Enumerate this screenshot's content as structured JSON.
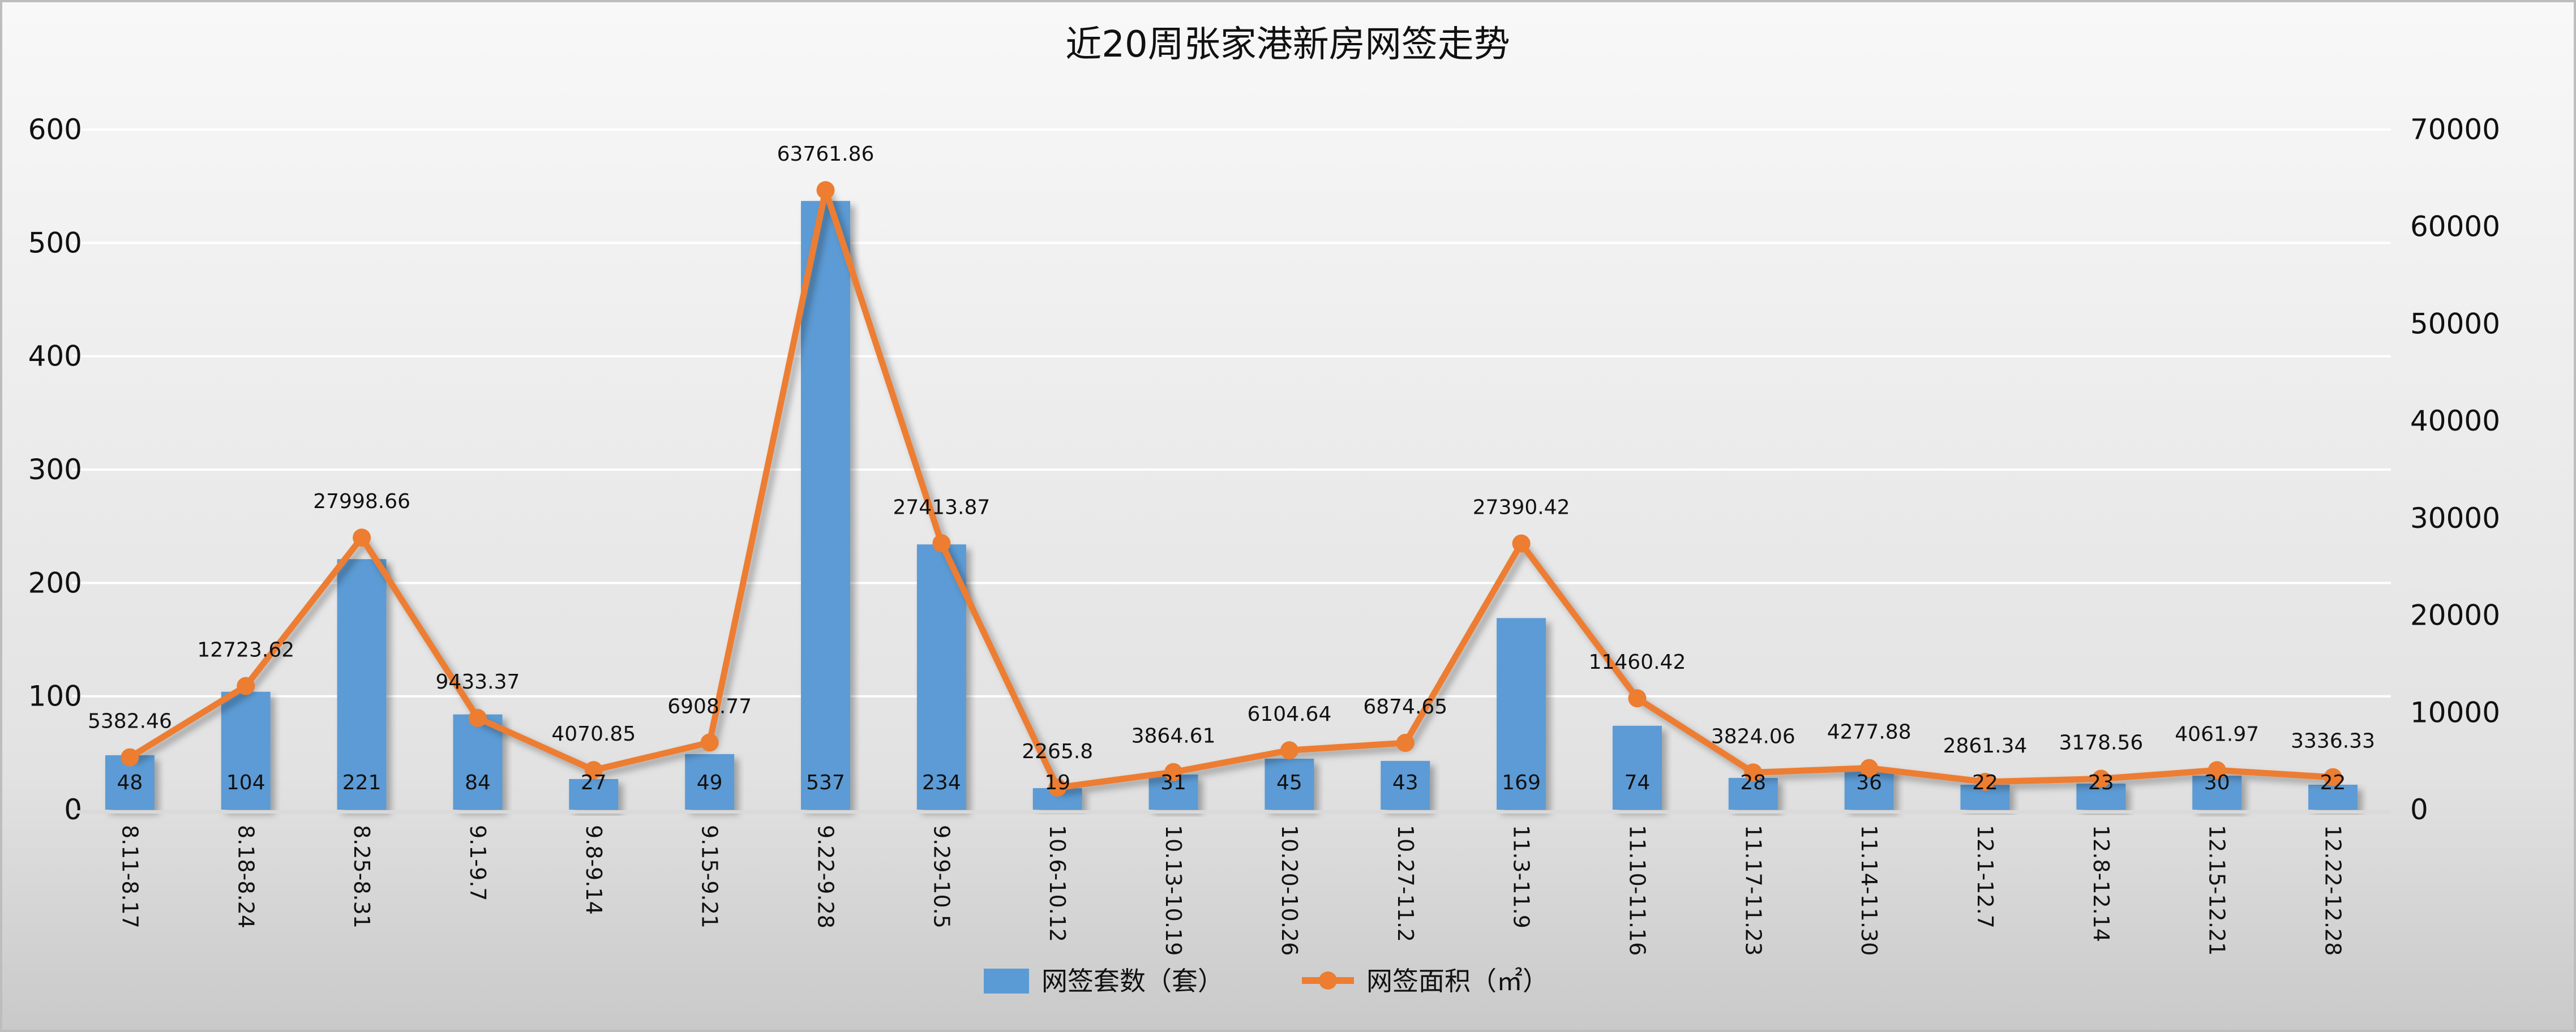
{
  "chart_data": {
    "type": "bar+line",
    "title": "近20周张家港新房网签走势",
    "categories": [
      "8.11-8.17",
      "8.18-8.24",
      "8.25-8.31",
      "9.1-9.7",
      "9.8-9.14",
      "9.15-9.21",
      "9.22-9.28",
      "9.29-10.5",
      "10.6-10.12",
      "10.13-10.19",
      "10.20-10.26",
      "10.27-11.2",
      "11.3-11.9",
      "11.10-11.16",
      "11.17-11.23",
      "11.14-11.30",
      "12.1-12.7",
      "12.8-12.14",
      "12.15-12.21",
      "12.22-12.28"
    ],
    "series": [
      {
        "name": "网签套数（套）",
        "type": "bar",
        "axis": "left",
        "color": "#5b9bd5",
        "values": [
          48,
          104,
          221,
          84,
          27,
          49,
          537,
          234,
          19,
          31,
          45,
          43,
          169,
          74,
          28,
          36,
          22,
          23,
          30,
          22
        ]
      },
      {
        "name": "网签面积（㎡）",
        "type": "line",
        "axis": "right",
        "color": "#ed7d31",
        "values": [
          5382.46,
          12723.62,
          27998.66,
          9433.37,
          4070.85,
          6908.77,
          63761.86,
          27413.87,
          2265.8,
          3864.61,
          6104.64,
          6874.65,
          27390.42,
          11460.42,
          3824.06,
          4277.88,
          2861.34,
          3178.56,
          4061.97,
          3336.33
        ]
      }
    ],
    "left_axis": {
      "ylim": [
        0,
        600
      ],
      "ticks": [
        "0",
        "100",
        "200",
        "300",
        "400",
        "500",
        "600"
      ]
    },
    "right_axis": {
      "ylim": [
        0,
        70000
      ],
      "ticks": [
        "0",
        "10000",
        "20000",
        "30000",
        "40000",
        "50000",
        "60000",
        "70000"
      ]
    },
    "grid": true,
    "legend": "bottom"
  }
}
